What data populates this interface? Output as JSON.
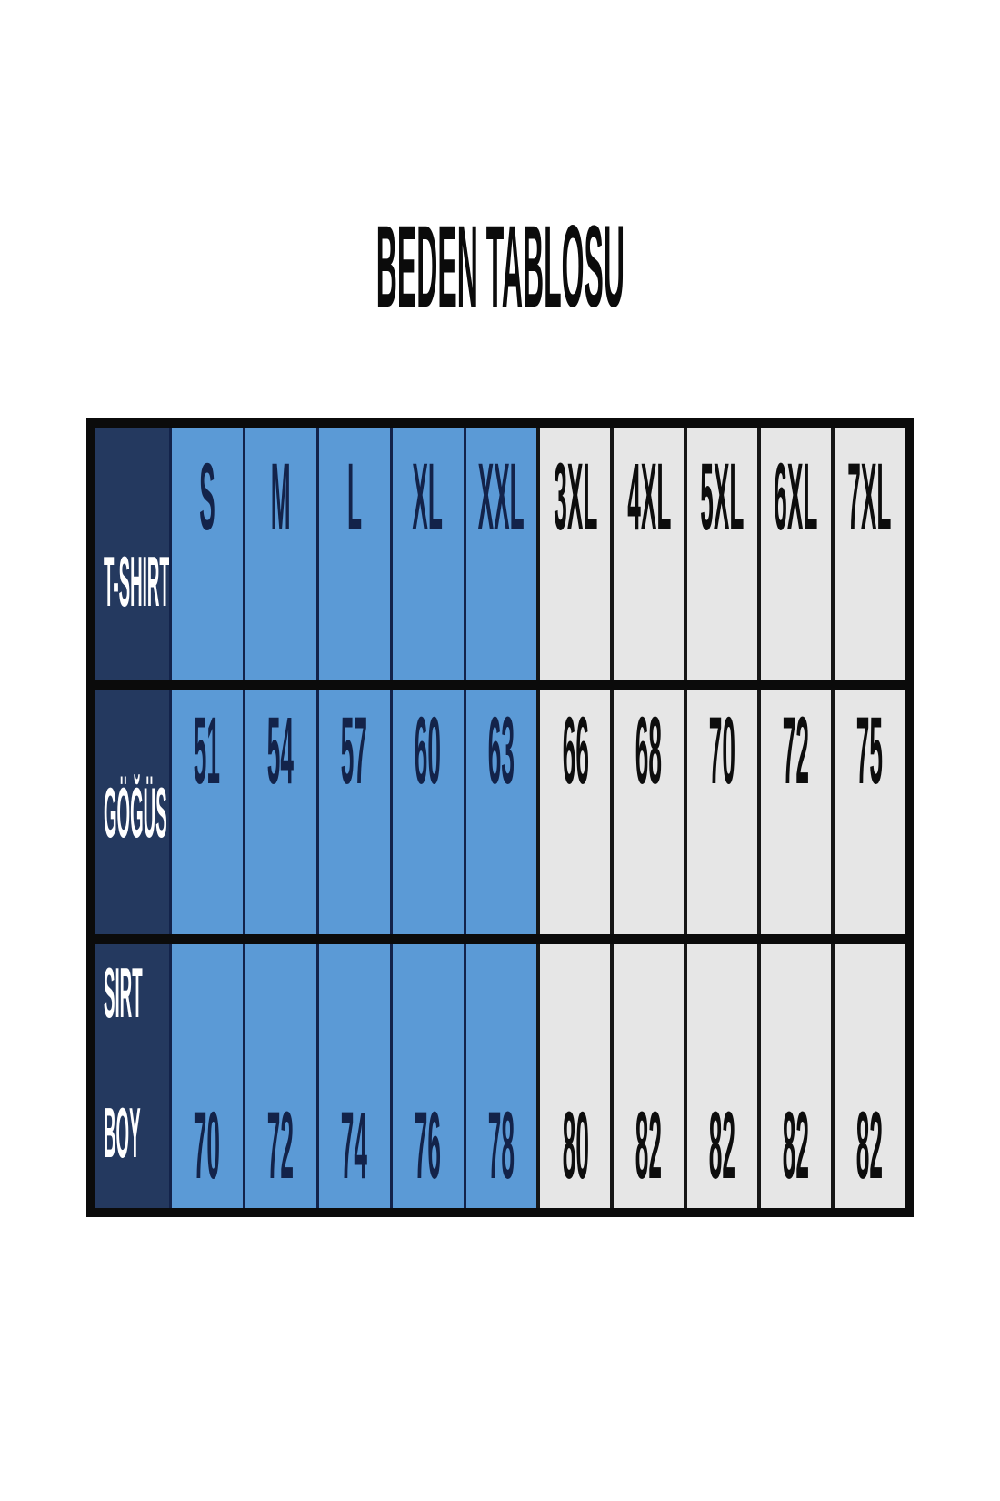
{
  "title": "BEDEN TABLOSU",
  "colors": {
    "navy": "#24395f",
    "blue": "#5b9ad6",
    "gray": "#e6e6e6",
    "border": "#0b0b0b"
  },
  "table": {
    "header": {
      "label": "T-SHIRT",
      "sizes": [
        "S",
        "M",
        "L",
        "XL",
        "XXL",
        "3XL",
        "4XL",
        "5XL",
        "6XL",
        "7XL"
      ]
    },
    "rows": [
      {
        "label": "GÖĞÜS",
        "values": [
          "51",
          "54",
          "57",
          "60",
          "63",
          "66",
          "68",
          "70",
          "72",
          "75"
        ]
      },
      {
        "label": "SIRT BOY",
        "label_lines": [
          "SIRT",
          "BOY"
        ],
        "values": [
          "70",
          "72",
          "74",
          "76",
          "78",
          "80",
          "82",
          "82",
          "82",
          "82"
        ]
      }
    ]
  },
  "chart_data": {
    "type": "table",
    "title": "BEDEN TABLOSU",
    "columns": [
      "T-SHIRT",
      "S",
      "M",
      "L",
      "XL",
      "XXL",
      "3XL",
      "4XL",
      "5XL",
      "6XL",
      "7XL"
    ],
    "rows": [
      [
        "GÖĞÜS",
        51,
        54,
        57,
        60,
        63,
        66,
        68,
        70,
        72,
        75
      ],
      [
        "SIRT BOY",
        70,
        72,
        74,
        76,
        78,
        80,
        82,
        82,
        82,
        82
      ]
    ],
    "layout_hints": {
      "highlighted_columns_blue": [
        "S",
        "M",
        "L",
        "XL",
        "XXL"
      ],
      "plain_columns_gray": [
        "3XL",
        "4XL",
        "5XL",
        "6XL",
        "7XL"
      ],
      "label_column_color": "navy",
      "grid": "thick black outer border and row separators, thin dark column lines"
    }
  }
}
